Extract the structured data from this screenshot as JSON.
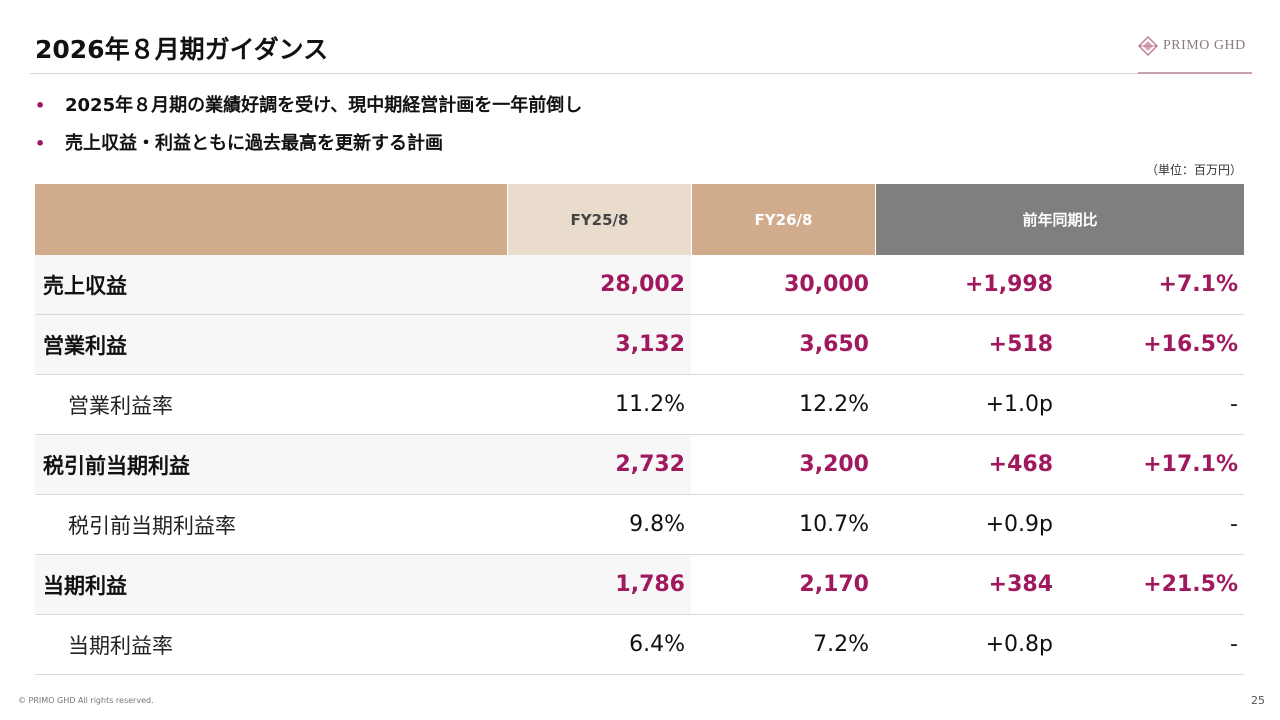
{
  "slide": {
    "title": "2026年８月期ガイダンス",
    "logo_text": "PRIMO GHD",
    "colors": {
      "accent": "#a0185e",
      "header_tan": "#d0ab8c",
      "header_light": "#eadccd",
      "header_gray": "#7f7f7f"
    }
  },
  "bullets": [
    "2025年８月期の業績好調を受け、現中期経営計画を一年前倒し",
    "売上収益・利益ともに過去最高を更新する計画"
  ],
  "unit_note": "（単位：百万円）",
  "table": {
    "headers": {
      "fy25": "FY25/8",
      "fy26": "FY26/8",
      "yoy": "前年同期比"
    },
    "rows": [
      {
        "label": "売上収益",
        "fy25": "28,002",
        "fy26": "30,000",
        "diff": "+1,998",
        "pct": "+7.1%"
      },
      {
        "label": "営業利益",
        "fy25": "3,132",
        "fy26": "3,650",
        "diff": "+518",
        "pct": "+16.5%"
      },
      {
        "label": "営業利益率",
        "fy25": "11.2%",
        "fy26": "12.2%",
        "diff": "+1.0p",
        "pct": "-"
      },
      {
        "label": "税引前当期利益",
        "fy25": "2,732",
        "fy26": "3,200",
        "diff": "+468",
        "pct": "+17.1%"
      },
      {
        "label": "税引前当期利益率",
        "fy25": "9.8%",
        "fy26": "10.7%",
        "diff": "+0.9p",
        "pct": "-"
      },
      {
        "label": "当期利益",
        "fy25": "1,786",
        "fy26": "2,170",
        "diff": "+384",
        "pct": "+21.5%"
      },
      {
        "label": "当期利益率",
        "fy25": "6.4%",
        "fy26": "7.2%",
        "diff": "+0.8p",
        "pct": "-"
      }
    ]
  },
  "footer": {
    "copyright": "© PRIMO GHD All rights reserved.",
    "page_number": "25"
  }
}
